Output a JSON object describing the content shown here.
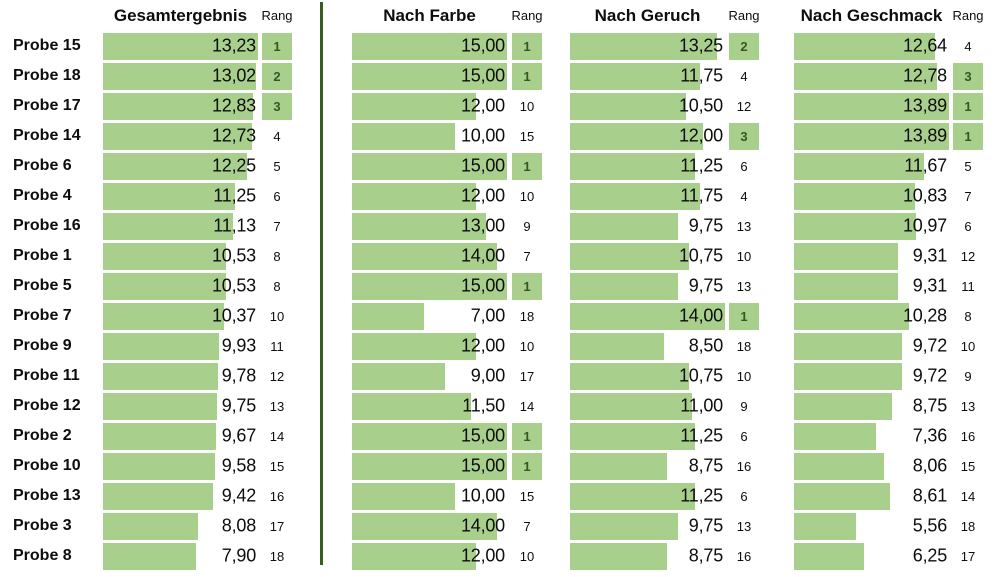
{
  "colors": {
    "bar": "#A9CF8D",
    "badge_bg": "#A9CF8D",
    "badge_text": "#375623",
    "divider": "#3A5B22",
    "text": "#0d0d0d"
  },
  "table": {
    "badge_max_rank": 3,
    "columns": [
      {
        "key": "gesamtergebnis",
        "label": "Gesamtergebnis",
        "rang_label": "Rang",
        "max": 13.23
      },
      {
        "key": "farbe",
        "label": "Nach Farbe",
        "rang_label": "Rang",
        "max": 15.0
      },
      {
        "key": "geruch",
        "label": "Nach Geruch",
        "rang_label": "Rang",
        "max": 14.0
      },
      {
        "key": "geschmack",
        "label": "Nach Geschmack",
        "rang_label": "Rang",
        "max": 13.89
      }
    ],
    "rows": [
      {
        "label": "Probe 15",
        "values": [
          "13,23",
          "15,00",
          "13,25",
          "12,64"
        ],
        "ranks": [
          1,
          1,
          2,
          4
        ]
      },
      {
        "label": "Probe 18",
        "values": [
          "13,02",
          "15,00",
          "11,75",
          "12,78"
        ],
        "ranks": [
          2,
          1,
          4,
          3
        ]
      },
      {
        "label": "Probe 17",
        "values": [
          "12,83",
          "12,00",
          "10,50",
          "13,89"
        ],
        "ranks": [
          3,
          10,
          12,
          1
        ]
      },
      {
        "label": "Probe 14",
        "values": [
          "12,73",
          "10,00",
          "12,00",
          "13,89"
        ],
        "ranks": [
          4,
          15,
          3,
          1
        ]
      },
      {
        "label": "Probe 6",
        "values": [
          "12,25",
          "15,00",
          "11,25",
          "11,67"
        ],
        "ranks": [
          5,
          1,
          6,
          5
        ]
      },
      {
        "label": "Probe 4",
        "values": [
          "11,25",
          "12,00",
          "11,75",
          "10,83"
        ],
        "ranks": [
          6,
          10,
          4,
          7
        ]
      },
      {
        "label": "Probe 16",
        "values": [
          "11,13",
          "13,00",
          "9,75",
          "10,97"
        ],
        "ranks": [
          7,
          9,
          13,
          6
        ]
      },
      {
        "label": "Probe 1",
        "values": [
          "10,53",
          "14,00",
          "10,75",
          "9,31"
        ],
        "ranks": [
          8,
          7,
          10,
          12
        ]
      },
      {
        "label": "Probe 5",
        "values": [
          "10,53",
          "15,00",
          "9,75",
          "9,31"
        ],
        "ranks": [
          8,
          1,
          13,
          11
        ]
      },
      {
        "label": "Probe 7",
        "values": [
          "10,37",
          "7,00",
          "14,00",
          "10,28"
        ],
        "ranks": [
          10,
          18,
          1,
          8
        ]
      },
      {
        "label": "Probe 9",
        "values": [
          "9,93",
          "12,00",
          "8,50",
          "9,72"
        ],
        "ranks": [
          11,
          10,
          18,
          10
        ]
      },
      {
        "label": "Probe 11",
        "values": [
          "9,78",
          "9,00",
          "10,75",
          "9,72"
        ],
        "ranks": [
          12,
          17,
          10,
          9
        ]
      },
      {
        "label": "Probe 12",
        "values": [
          "9,75",
          "11,50",
          "11,00",
          "8,75"
        ],
        "ranks": [
          13,
          14,
          9,
          13
        ]
      },
      {
        "label": "Probe 2",
        "values": [
          "9,67",
          "15,00",
          "11,25",
          "7,36"
        ],
        "ranks": [
          14,
          1,
          6,
          16
        ]
      },
      {
        "label": "Probe 10",
        "values": [
          "9,58",
          "15,00",
          "8,75",
          "8,06"
        ],
        "ranks": [
          15,
          1,
          16,
          15
        ]
      },
      {
        "label": "Probe 13",
        "values": [
          "9,42",
          "10,00",
          "11,25",
          "8,61"
        ],
        "ranks": [
          16,
          15,
          6,
          14
        ]
      },
      {
        "label": "Probe 3",
        "values": [
          "8,08",
          "14,00",
          "9,75",
          "5,56"
        ],
        "ranks": [
          17,
          7,
          13,
          18
        ]
      },
      {
        "label": "Probe 8",
        "values": [
          "7,90",
          "12,00",
          "8,75",
          "6,25"
        ],
        "ranks": [
          18,
          10,
          16,
          17
        ]
      }
    ]
  },
  "chart_data": {
    "type": "bar",
    "orientation": "horizontal",
    "title": "",
    "value_format": "0,00 (German decimal comma)",
    "categories": [
      "Probe 15",
      "Probe 18",
      "Probe 17",
      "Probe 14",
      "Probe 6",
      "Probe 4",
      "Probe 16",
      "Probe 1",
      "Probe 5",
      "Probe 7",
      "Probe 9",
      "Probe 11",
      "Probe 12",
      "Probe 2",
      "Probe 10",
      "Probe 13",
      "Probe 3",
      "Probe 8"
    ],
    "series": [
      {
        "name": "Gesamtergebnis",
        "xlim": [
          0,
          13.23
        ],
        "values": [
          13.23,
          13.02,
          12.83,
          12.73,
          12.25,
          11.25,
          11.13,
          10.53,
          10.53,
          10.37,
          9.93,
          9.78,
          9.75,
          9.67,
          9.58,
          9.42,
          8.08,
          7.9
        ],
        "ranks": [
          1,
          2,
          3,
          4,
          5,
          6,
          7,
          8,
          8,
          10,
          11,
          12,
          13,
          14,
          15,
          16,
          17,
          18
        ]
      },
      {
        "name": "Nach Farbe",
        "xlim": [
          0,
          15.0
        ],
        "values": [
          15.0,
          15.0,
          12.0,
          10.0,
          15.0,
          12.0,
          13.0,
          14.0,
          15.0,
          7.0,
          12.0,
          9.0,
          11.5,
          15.0,
          15.0,
          10.0,
          14.0,
          12.0
        ],
        "ranks": [
          1,
          1,
          10,
          15,
          1,
          10,
          9,
          7,
          1,
          18,
          10,
          17,
          14,
          1,
          1,
          15,
          7,
          10
        ]
      },
      {
        "name": "Nach Geruch",
        "xlim": [
          0,
          14.0
        ],
        "values": [
          13.25,
          11.75,
          10.5,
          12.0,
          11.25,
          11.75,
          9.75,
          10.75,
          9.75,
          14.0,
          8.5,
          10.75,
          11.0,
          11.25,
          8.75,
          11.25,
          9.75,
          8.75
        ],
        "ranks": [
          2,
          4,
          12,
          3,
          6,
          4,
          13,
          10,
          13,
          1,
          18,
          10,
          9,
          6,
          16,
          6,
          13,
          16
        ]
      },
      {
        "name": "Nach Geschmack",
        "xlim": [
          0,
          13.89
        ],
        "values": [
          12.64,
          12.78,
          13.89,
          13.89,
          11.67,
          10.83,
          10.97,
          9.31,
          9.31,
          10.28,
          9.72,
          9.72,
          8.75,
          7.36,
          8.06,
          8.61,
          5.56,
          6.25
        ],
        "ranks": [
          4,
          3,
          1,
          1,
          5,
          7,
          6,
          12,
          11,
          8,
          10,
          9,
          13,
          16,
          15,
          14,
          18,
          17
        ]
      }
    ],
    "legend": false,
    "grid": false,
    "notes": "Excel-style table with in-cell data bars; ranks 1-3 highlighted with green badge; dark green vertical divider separates Gesamtergebnis block from category blocks"
  }
}
